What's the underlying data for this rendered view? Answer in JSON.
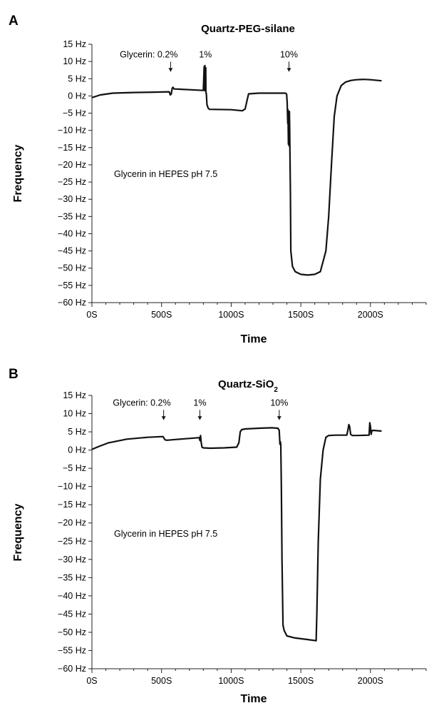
{
  "chart_data": [
    {
      "type": "line",
      "panel": "A",
      "title": "Quartz-PEG-silane",
      "title_sub": "",
      "xlabel": "Time",
      "ylabel": "Frequency",
      "xlim": [
        0,
        2400
      ],
      "ylim": [
        -60,
        15
      ],
      "x_ticks": [
        0,
        500,
        1000,
        1500,
        2000
      ],
      "x_tick_labels": [
        "0S",
        "500S",
        "1000S",
        "1500S",
        "2000S"
      ],
      "y_ticks": [
        15,
        10,
        5,
        0,
        -5,
        -10,
        -15,
        -20,
        -25,
        -30,
        -35,
        -40,
        -45,
        -50,
        -55,
        -60
      ],
      "y_tick_labels": [
        "15 Hz",
        "10 Hz",
        "5 Hz",
        "0 Hz",
        "−5 Hz",
        "−10 Hz",
        "−15 Hz",
        "−20 Hz",
        "−25 Hz",
        "−30 Hz",
        "−35 Hz",
        "−40 Hz",
        "−45 Hz",
        "−50 Hz",
        "−55 Hz",
        "−60 Hz"
      ],
      "grid": false,
      "series_color": "#111111",
      "series": [
        {
          "x": [
            0,
            60,
            150,
            300,
            450,
            555,
            563,
            570,
            576,
            582,
            590,
            600,
            700,
            800,
            806,
            808,
            811,
            814,
            817,
            818,
            822,
            826,
            835,
            845,
            1000,
            1080,
            1100,
            1110,
            1125,
            1200,
            1300,
            1390,
            1398,
            1402,
            1406,
            1408,
            1411,
            1413,
            1416,
            1418,
            1420,
            1425,
            1428,
            1440,
            1460,
            1500,
            1550,
            1600,
            1640,
            1680,
            1700,
            1720,
            1740,
            1760,
            1790,
            1820,
            1860,
            1900,
            1950,
            2000,
            2080
          ],
          "y": [
            -0.5,
            0.3,
            0.8,
            1.0,
            1.1,
            1.2,
            0.3,
            0.6,
            2.2,
            2.5,
            2.0,
            2.0,
            1.8,
            1.6,
            8.5,
            1.6,
            8.8,
            1.5,
            8.2,
            1.2,
            0.5,
            -2.5,
            -3.6,
            -3.9,
            -4.0,
            -4.3,
            -3.8,
            -2.0,
            0.6,
            0.8,
            0.8,
            0.8,
            0.5,
            -2.0,
            -8.0,
            -4.0,
            -14.0,
            -6.0,
            -14.5,
            -4.5,
            -10.0,
            -28.0,
            -45.0,
            -49.5,
            -51.0,
            -51.8,
            -52.0,
            -51.8,
            -51.0,
            -45.0,
            -35.0,
            -20.0,
            -6.0,
            0.0,
            3.0,
            4.0,
            4.5,
            4.7,
            4.8,
            4.7,
            4.4
          ]
        }
      ],
      "annotations": [
        {
          "label": "Glycerin: 0.2%",
          "x": 565,
          "y": 11.2,
          "arrow_x": 565
        },
        {
          "label": "1%",
          "x": 815,
          "y": 11.2,
          "arrow_x": null
        },
        {
          "label": "10%",
          "x": 1415,
          "y": 11.2,
          "arrow_x": 1415
        }
      ],
      "note": "Glycerin in HEPES pH 7.5"
    },
    {
      "type": "line",
      "panel": "B",
      "title": "Quartz-SiO",
      "title_sub": "2",
      "xlabel": "Time",
      "ylabel": "Frequency",
      "xlim": [
        0,
        2400
      ],
      "ylim": [
        -60,
        15
      ],
      "x_ticks": [
        0,
        500,
        1000,
        1500,
        2000
      ],
      "x_tick_labels": [
        "0S",
        "500S",
        "1000S",
        "1500S",
        "2000S"
      ],
      "y_ticks": [
        15,
        10,
        5,
        0,
        -5,
        -10,
        -15,
        -20,
        -25,
        -30,
        -35,
        -40,
        -45,
        -50,
        -55,
        -60
      ],
      "y_tick_labels": [
        "15 Hz",
        "10 Hz",
        "5 Hz",
        "0 Hz",
        "−5 Hz",
        "−10 Hz",
        "−15 Hz",
        "−20 Hz",
        "−25 Hz",
        "−30 Hz",
        "−35 Hz",
        "−40 Hz",
        "−45 Hz",
        "−50 Hz",
        "−55 Hz",
        "−60 Hz"
      ],
      "grid": false,
      "series_color": "#111111",
      "series": [
        {
          "x": [
            0,
            50,
            120,
            250,
            400,
            510,
            525,
            540,
            600,
            700,
            770,
            776,
            780,
            784,
            790,
            800,
            850,
            950,
            1040,
            1055,
            1065,
            1075,
            1100,
            1200,
            1290,
            1335,
            1345,
            1350,
            1353,
            1356,
            1360,
            1365,
            1372,
            1380,
            1400,
            1450,
            1550,
            1610,
            1615,
            1625,
            1640,
            1660,
            1680,
            1700,
            1750,
            1830,
            1838,
            1845,
            1850,
            1858,
            1870,
            1900,
            1990,
            1995,
            2000,
            2005,
            2010,
            2020,
            2050,
            2080
          ],
          "y": [
            0.2,
            1.0,
            2.0,
            3.0,
            3.5,
            3.7,
            2.8,
            2.7,
            2.9,
            3.2,
            3.4,
            2.6,
            4.0,
            2.3,
            0.8,
            0.6,
            0.5,
            0.6,
            0.8,
            2.0,
            5.0,
            5.6,
            5.8,
            6.0,
            6.1,
            6.0,
            5.4,
            1.6,
            2.3,
            1.5,
            -10.0,
            -30.0,
            -48.0,
            -49.5,
            -51.0,
            -51.5,
            -52.0,
            -52.3,
            -45.0,
            -25.0,
            -8.0,
            0.0,
            3.5,
            4.0,
            4.1,
            4.1,
            5.5,
            7.0,
            6.5,
            4.3,
            4.0,
            4.0,
            4.1,
            7.5,
            6.5,
            4.3,
            5.3,
            5.4,
            5.3,
            5.2
          ]
        }
      ],
      "annotations": [
        {
          "label": "Glycerin: 0.2%",
          "x": 515,
          "y": 12.2,
          "arrow_x": 515
        },
        {
          "label": "1%",
          "x": 775,
          "y": 12.2,
          "arrow_x": 775
        },
        {
          "label": "10%",
          "x": 1345,
          "y": 12.2,
          "arrow_x": 1345
        }
      ],
      "note": "Glycerin in HEPES pH 7.5"
    }
  ]
}
